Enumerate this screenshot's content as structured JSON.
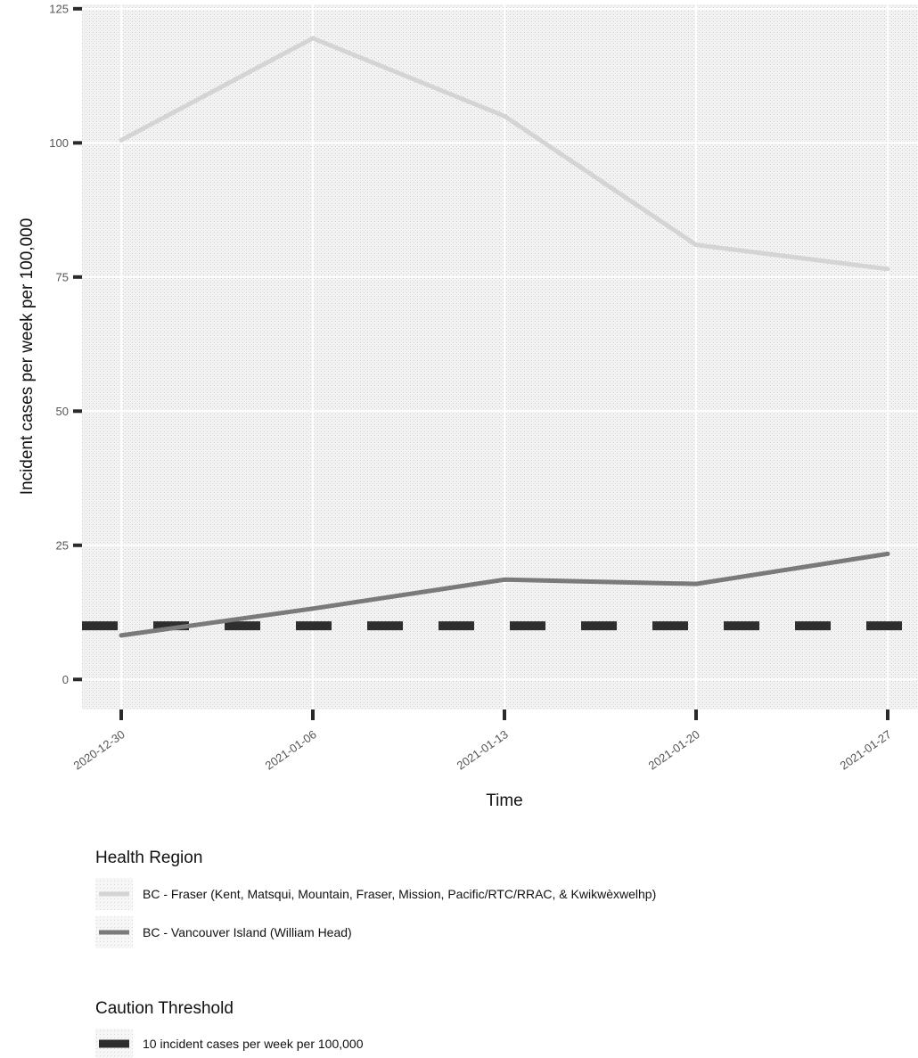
{
  "chart_data": {
    "type": "line",
    "xlabel": "Time",
    "ylabel": "Incident cases per week per 100,000",
    "x": [
      "2020-12-30",
      "2021-01-06",
      "2021-01-13",
      "2021-01-20",
      "2021-01-27"
    ],
    "ylim": [
      -5.6,
      125.8
    ],
    "yticks": [
      0,
      25,
      50,
      75,
      100,
      125
    ],
    "grid": true,
    "series": [
      {
        "name": "BC - Fraser (Kent, Matsqui, Mountain, Fraser, Mission, Pacific/RTC/RRAC, & Kwikwèxwelhp)",
        "values": [
          100.5,
          119.5,
          105,
          81,
          76.5
        ],
        "color": "#d4d4d4"
      },
      {
        "name": "BC - Vancouver Island (William Head)",
        "values": [
          8.2,
          13.2,
          18.6,
          17.8,
          23.4
        ],
        "color": "#7a7a7a"
      }
    ],
    "threshold": {
      "value": 10,
      "style": "dashed",
      "color": "#2e2e2e"
    },
    "legends": [
      {
        "title": "Health Region",
        "entries": [
          "series.0",
          "series.1"
        ]
      },
      {
        "title": "Caution Threshold",
        "entries": [
          "10 incident cases per week per 100,000"
        ]
      }
    ]
  }
}
